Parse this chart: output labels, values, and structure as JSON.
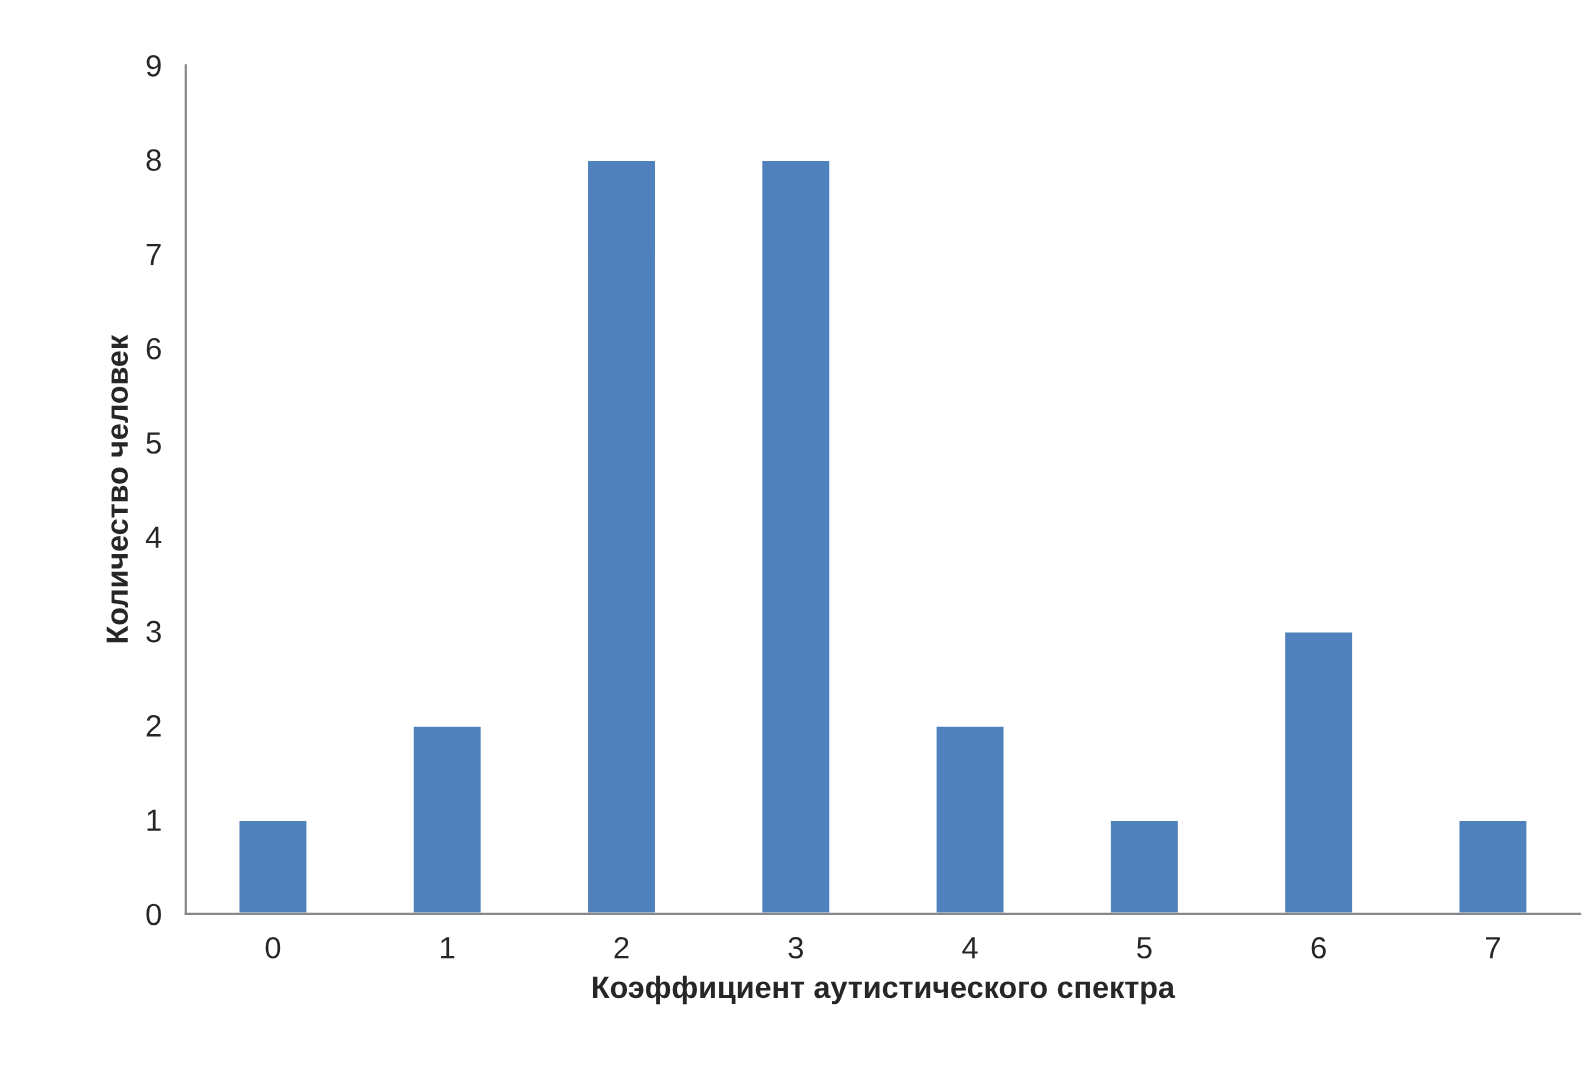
{
  "chart_data": {
    "type": "bar",
    "xlabel": "Коэффициент аутистического спектра",
    "ylabel": "Количество человек",
    "categories": [
      "0",
      "1",
      "2",
      "3",
      "4",
      "5",
      "6",
      "7"
    ],
    "values": [
      1,
      2,
      8,
      8,
      2,
      1,
      3,
      1
    ],
    "color": "#4f81bd",
    "ylim": [
      0,
      9
    ],
    "yticks": [
      0,
      1,
      2,
      3,
      4,
      5,
      6,
      7,
      8,
      9
    ],
    "grid": false,
    "legend": false
  }
}
